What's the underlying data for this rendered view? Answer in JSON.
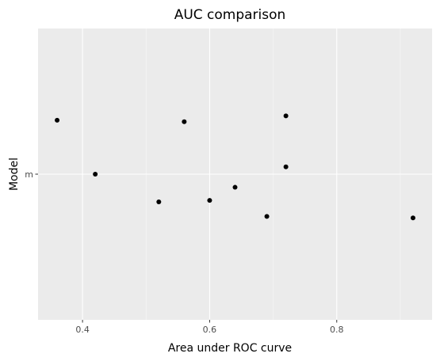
{
  "chart_data": {
    "type": "scatter",
    "title": "AUC comparison",
    "xlabel": "Area under ROC curve",
    "ylabel": "Model",
    "xlim": [
      0.33,
      0.95
    ],
    "x_ticks": [
      {
        "value": 0.4,
        "label": "0.4"
      },
      {
        "value": 0.6,
        "label": "0.6"
      },
      {
        "value": 0.8,
        "label": "0.8"
      }
    ],
    "x_minor_ticks": [
      0.5,
      0.7,
      0.9
    ],
    "y_categories": [
      "m"
    ],
    "jitter_range": [
      -0.5,
      0.5
    ],
    "points": [
      {
        "x": 0.36,
        "category": "m",
        "jitter": 0.185
      },
      {
        "x": 0.42,
        "category": "m",
        "jitter": 0.0
      },
      {
        "x": 0.52,
        "category": "m",
        "jitter": -0.095
      },
      {
        "x": 0.56,
        "category": "m",
        "jitter": 0.18
      },
      {
        "x": 0.6,
        "category": "m",
        "jitter": -0.09
      },
      {
        "x": 0.64,
        "category": "m",
        "jitter": -0.045
      },
      {
        "x": 0.69,
        "category": "m",
        "jitter": -0.145
      },
      {
        "x": 0.72,
        "category": "m",
        "jitter": 0.2
      },
      {
        "x": 0.72,
        "category": "m",
        "jitter": 0.025
      },
      {
        "x": 0.92,
        "category": "m",
        "jitter": -0.15
      }
    ],
    "grid": true,
    "legend": "none",
    "colors": {
      "panel_background": "#ebebeb",
      "grid_major": "#ffffff",
      "grid_minor": "#f7f7f7",
      "point": "#000000",
      "tick_text": "#4d4d4d",
      "tick_mark": "#333333"
    }
  }
}
